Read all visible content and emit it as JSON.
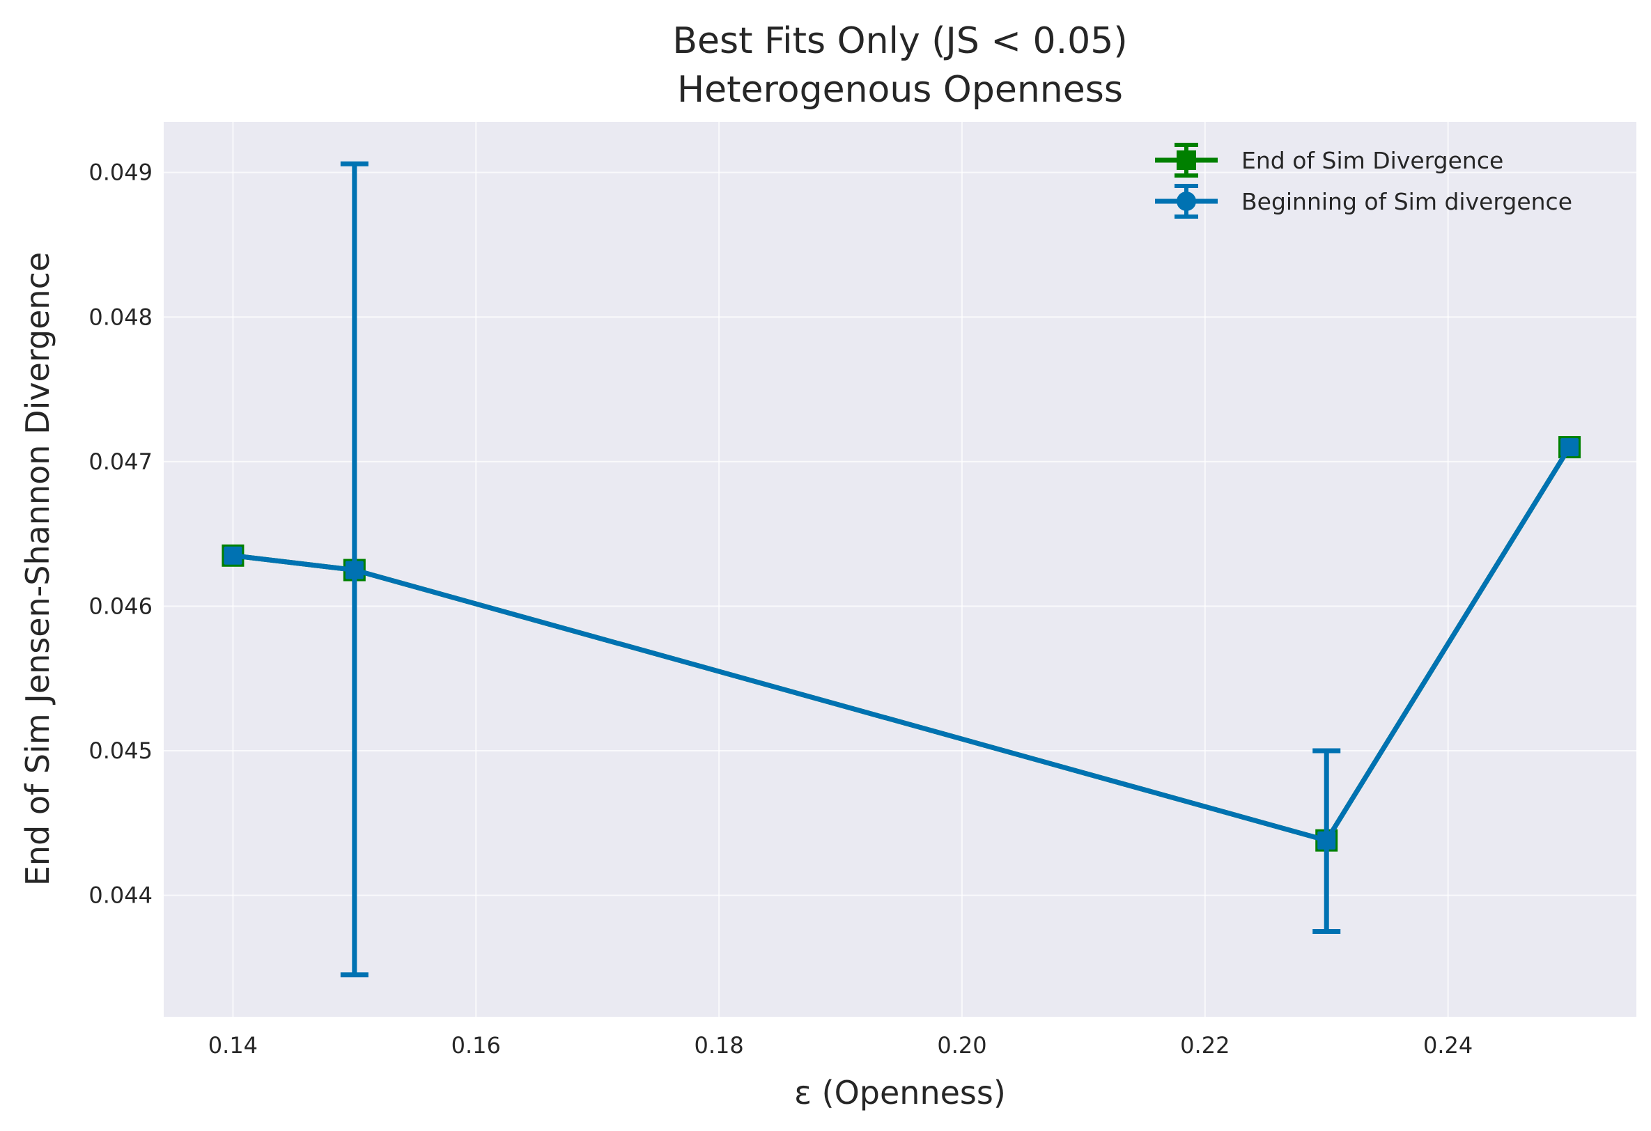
{
  "chart_data": {
    "type": "line",
    "title": "Best Fits Only (JS < 0.05)",
    "subtitle": "Heterogenous Openness",
    "xlabel": "ε (Openness)",
    "ylabel": "End of Sim Jensen-Shannon Divergence",
    "xlim": [
      0.1343,
      0.2555
    ],
    "ylim": [
      0.04316,
      0.04935
    ],
    "x_ticks": [
      "0.14",
      "0.16",
      "0.18",
      "0.20",
      "0.22",
      "0.24"
    ],
    "y_ticks": [
      "0.044",
      "0.045",
      "0.046",
      "0.047",
      "0.048",
      "0.049"
    ],
    "grid": true,
    "legend_position": "top-right",
    "series": [
      {
        "name": "End of Sim Divergence",
        "color": "#008000",
        "marker": "square",
        "x": [
          0.14,
          0.15,
          0.23,
          0.25
        ],
        "values": [
          0.04635,
          0.04625,
          0.04438,
          0.0471
        ],
        "error_low": [
          0.04635,
          0.04625,
          0.04438,
          0.0471
        ],
        "error_high": [
          0.04635,
          0.04625,
          0.04438,
          0.0471
        ]
      },
      {
        "name": "Beginning of Sim divergence",
        "color": "#0072b2",
        "marker": "circle",
        "x": [
          0.14,
          0.15,
          0.23,
          0.25
        ],
        "values": [
          0.04635,
          0.04625,
          0.04438,
          0.0471
        ],
        "error_low": [
          0.04635,
          0.04345,
          0.04375,
          0.0471
        ],
        "error_high": [
          0.04635,
          0.04906,
          0.045,
          0.0471
        ]
      }
    ]
  }
}
